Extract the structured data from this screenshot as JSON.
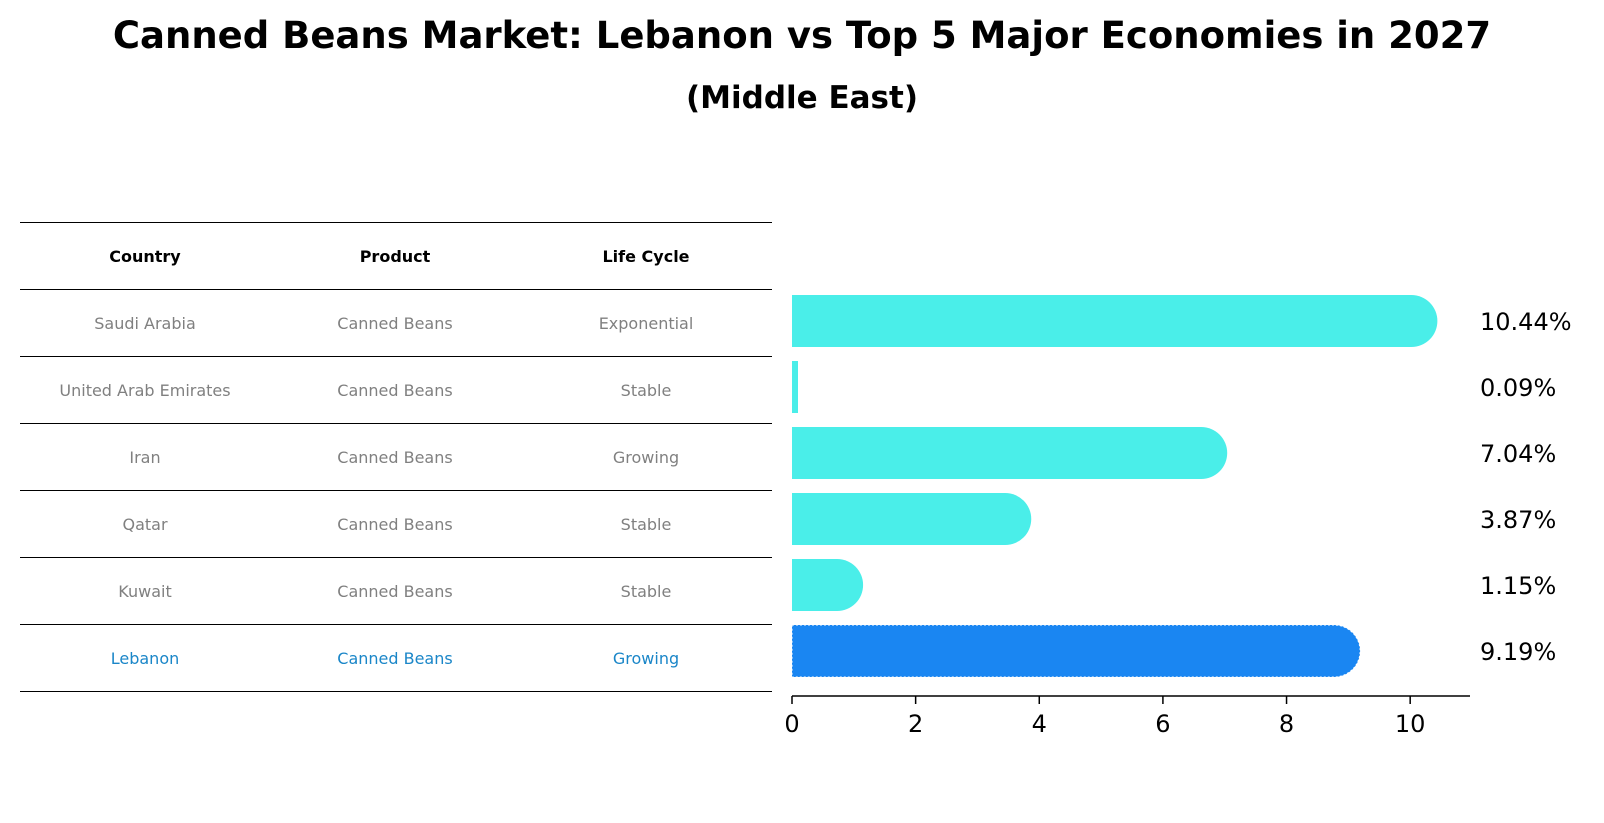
{
  "chart_data": {
    "type": "bar",
    "orientation": "horizontal",
    "title": "Canned Beans Market: Lebanon vs Top 5 Major Economies in 2027",
    "subtitle": "(Middle East)",
    "categories": [
      "Saudi Arabia",
      "United Arab Emirates",
      "Iran",
      "Qatar",
      "Kuwait",
      "Lebanon"
    ],
    "values": [
      10.44,
      0.09,
      7.04,
      3.87,
      1.15,
      9.19
    ],
    "value_labels": [
      "10.44%",
      "0.09%",
      "7.04%",
      "3.87%",
      "1.15%",
      "9.19%"
    ],
    "highlight": "Lebanon",
    "xlim": [
      0,
      11
    ],
    "xticks": [
      0,
      2,
      4,
      6,
      8,
      10
    ],
    "colors": {
      "default": "#4aeee9",
      "highlight": "#1a86f2"
    }
  },
  "table": {
    "headers": [
      "Country",
      "Product",
      "Life Cycle"
    ],
    "rows": [
      [
        "Saudi Arabia",
        "Canned Beans",
        "Exponential"
      ],
      [
        "United Arab Emirates",
        "Canned Beans",
        "Stable"
      ],
      [
        "Iran",
        "Canned Beans",
        "Growing"
      ],
      [
        "Qatar",
        "Canned Beans",
        "Stable"
      ],
      [
        "Kuwait",
        "Canned Beans",
        "Stable"
      ],
      [
        "Lebanon",
        "Canned Beans",
        "Growing"
      ]
    ]
  }
}
